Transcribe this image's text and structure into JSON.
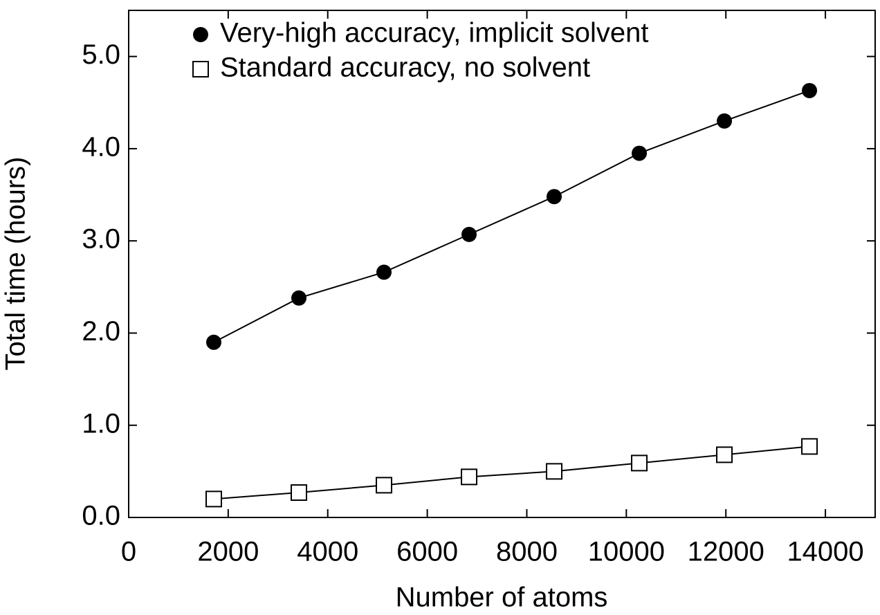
{
  "chart_data": {
    "type": "scatter",
    "x_label": "Number of atoms",
    "y_label": "Total time (hours)",
    "xlim": [
      0,
      15000
    ],
    "xticks": [
      0,
      2000,
      4000,
      6000,
      8000,
      10000,
      12000,
      14000
    ],
    "ylim": [
      0,
      5.5
    ],
    "yticks": [
      {
        "value": 0,
        "label": "0.0"
      },
      {
        "value": 1,
        "label": "1.0"
      },
      {
        "value": 2,
        "label": "2.0"
      },
      {
        "value": 3,
        "label": "3.0"
      },
      {
        "value": 4,
        "label": "4.0"
      },
      {
        "value": 5,
        "label": "5.0"
      }
    ],
    "legend": "upper left",
    "series": [
      {
        "name": "Very-high accuracy, implicit solvent",
        "color": "#000000",
        "marker": "circle",
        "x": [
          1710,
          3420,
          5130,
          6840,
          8550,
          10260,
          11970,
          13680
        ],
        "values": [
          1.9,
          2.38,
          2.66,
          3.07,
          3.48,
          3.95,
          4.3,
          4.63
        ]
      },
      {
        "name": "Standard accuracy, no solvent",
        "color": "#000000",
        "marker": "square",
        "x": [
          1710,
          3420,
          5130,
          6840,
          8550,
          10260,
          11970,
          13680
        ],
        "values": [
          0.2,
          0.27,
          0.35,
          0.44,
          0.5,
          0.59,
          0.68,
          0.77
        ]
      }
    ]
  }
}
